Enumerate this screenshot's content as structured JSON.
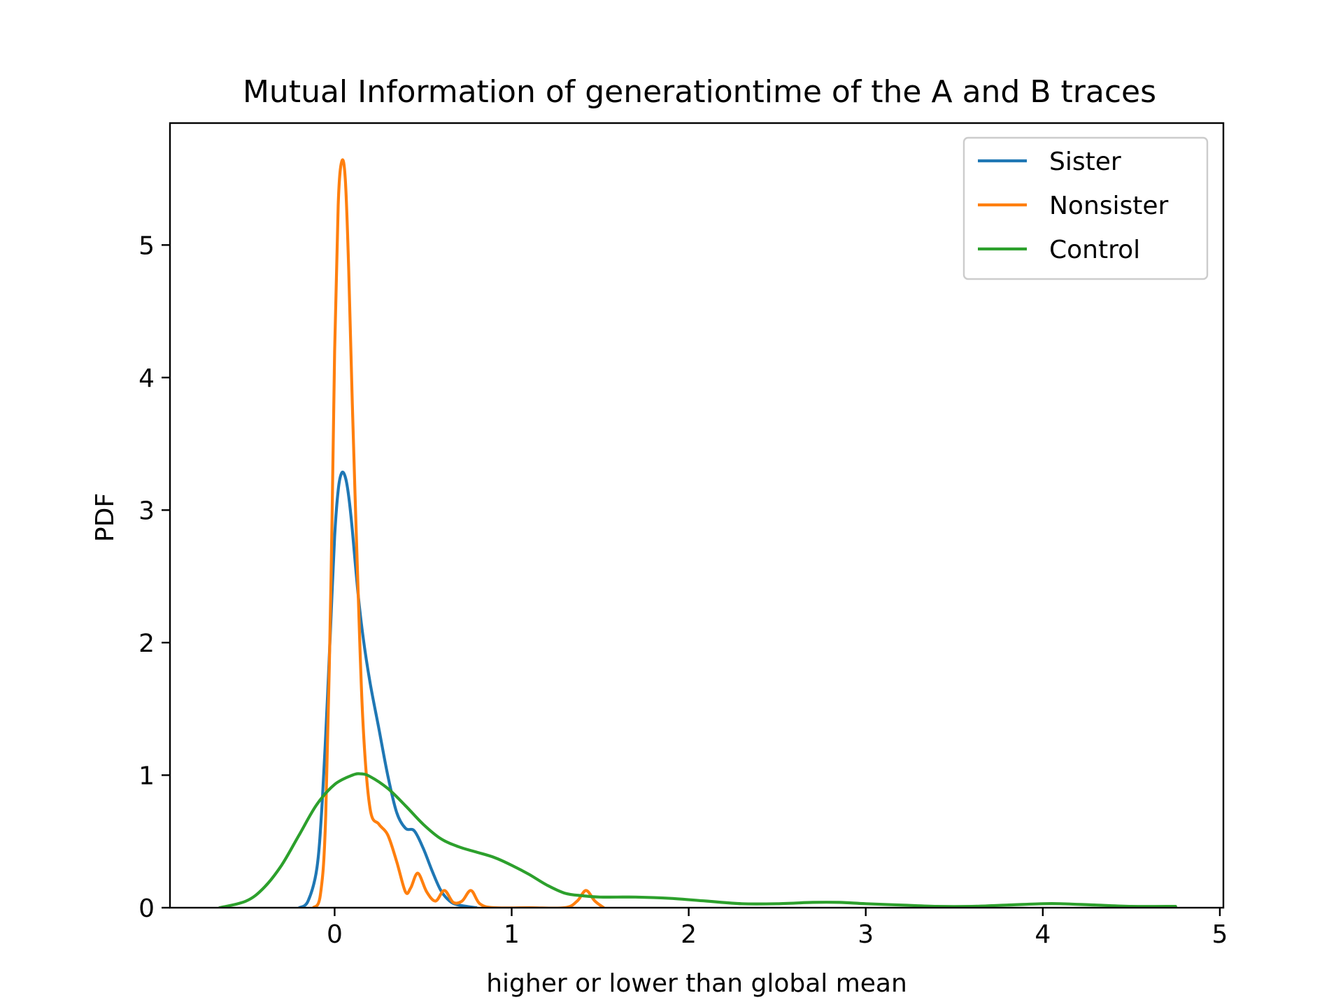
{
  "chart_data": {
    "type": "line",
    "title": "Mutual Information of generationtime of the A and B traces",
    "xlabel": "higher or lower than global mean",
    "ylabel": "PDF",
    "xlim": [
      -0.93,
      5.02
    ],
    "ylim": [
      0,
      5.92
    ],
    "xticks": [
      0,
      1,
      2,
      3,
      4,
      5
    ],
    "yticks": [
      0,
      1,
      2,
      3,
      4,
      5
    ],
    "grid": false,
    "legend_position": "top-right",
    "series": [
      {
        "name": "Sister",
        "color": "#1f77b4",
        "points": [
          [
            -0.2,
            0.0
          ],
          [
            -0.15,
            0.05
          ],
          [
            -0.1,
            0.3
          ],
          [
            -0.07,
            0.8
          ],
          [
            -0.04,
            1.6
          ],
          [
            -0.02,
            2.2
          ],
          [
            0.0,
            2.8
          ],
          [
            0.02,
            3.15
          ],
          [
            0.04,
            3.28
          ],
          [
            0.06,
            3.25
          ],
          [
            0.08,
            3.1
          ],
          [
            0.1,
            2.85
          ],
          [
            0.13,
            2.4
          ],
          [
            0.16,
            2.05
          ],
          [
            0.2,
            1.7
          ],
          [
            0.25,
            1.35
          ],
          [
            0.3,
            1.0
          ],
          [
            0.35,
            0.72
          ],
          [
            0.4,
            0.6
          ],
          [
            0.45,
            0.58
          ],
          [
            0.5,
            0.45
          ],
          [
            0.55,
            0.28
          ],
          [
            0.6,
            0.13
          ],
          [
            0.65,
            0.05
          ],
          [
            0.7,
            0.02
          ],
          [
            0.8,
            0.0
          ]
        ]
      },
      {
        "name": "Nonsister",
        "color": "#ff7f0e",
        "points": [
          [
            -0.12,
            0.0
          ],
          [
            -0.08,
            0.1
          ],
          [
            -0.05,
            0.7
          ],
          [
            -0.02,
            2.5
          ],
          [
            0.0,
            4.2
          ],
          [
            0.02,
            5.3
          ],
          [
            0.04,
            5.63
          ],
          [
            0.06,
            5.5
          ],
          [
            0.08,
            4.8
          ],
          [
            0.1,
            3.8
          ],
          [
            0.13,
            2.5
          ],
          [
            0.16,
            1.4
          ],
          [
            0.2,
            0.75
          ],
          [
            0.25,
            0.63
          ],
          [
            0.3,
            0.55
          ],
          [
            0.35,
            0.35
          ],
          [
            0.4,
            0.12
          ],
          [
            0.43,
            0.15
          ],
          [
            0.47,
            0.26
          ],
          [
            0.52,
            0.12
          ],
          [
            0.57,
            0.05
          ],
          [
            0.62,
            0.13
          ],
          [
            0.67,
            0.04
          ],
          [
            0.72,
            0.05
          ],
          [
            0.77,
            0.13
          ],
          [
            0.82,
            0.03
          ],
          [
            0.9,
            0.0
          ],
          [
            1.1,
            0.0
          ],
          [
            1.3,
            0.0
          ],
          [
            1.37,
            0.05
          ],
          [
            1.42,
            0.13
          ],
          [
            1.47,
            0.05
          ],
          [
            1.52,
            0.0
          ]
        ]
      },
      {
        "name": "Control",
        "color": "#2ca02c",
        "points": [
          [
            -0.65,
            0.0
          ],
          [
            -0.5,
            0.05
          ],
          [
            -0.4,
            0.15
          ],
          [
            -0.3,
            0.32
          ],
          [
            -0.2,
            0.55
          ],
          [
            -0.1,
            0.78
          ],
          [
            0.0,
            0.93
          ],
          [
            0.1,
            1.0
          ],
          [
            0.15,
            1.01
          ],
          [
            0.2,
            0.99
          ],
          [
            0.3,
            0.9
          ],
          [
            0.4,
            0.77
          ],
          [
            0.5,
            0.63
          ],
          [
            0.6,
            0.52
          ],
          [
            0.7,
            0.46
          ],
          [
            0.8,
            0.42
          ],
          [
            0.9,
            0.38
          ],
          [
            1.0,
            0.32
          ],
          [
            1.1,
            0.25
          ],
          [
            1.2,
            0.17
          ],
          [
            1.3,
            0.11
          ],
          [
            1.4,
            0.09
          ],
          [
            1.5,
            0.08
          ],
          [
            1.7,
            0.08
          ],
          [
            1.9,
            0.07
          ],
          [
            2.1,
            0.05
          ],
          [
            2.3,
            0.03
          ],
          [
            2.5,
            0.03
          ],
          [
            2.7,
            0.04
          ],
          [
            2.85,
            0.04
          ],
          [
            3.0,
            0.03
          ],
          [
            3.2,
            0.02
          ],
          [
            3.4,
            0.01
          ],
          [
            3.6,
            0.01
          ],
          [
            3.8,
            0.02
          ],
          [
            4.0,
            0.03
          ],
          [
            4.1,
            0.03
          ],
          [
            4.3,
            0.02
          ],
          [
            4.5,
            0.01
          ],
          [
            4.75,
            0.01
          ]
        ]
      }
    ]
  }
}
